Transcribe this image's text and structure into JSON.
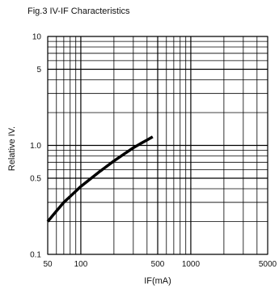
{
  "chart_data": {
    "type": "line",
    "title": "Fig.3 IV-IF Characteristics",
    "xlabel": "IF(mA)",
    "ylabel": "Relative IV.",
    "xscale": "log",
    "yscale": "log",
    "xlim": [
      50,
      5000
    ],
    "ylim": [
      0.1,
      10
    ],
    "x_tick_labels": [
      "50",
      "100",
      "500",
      "1000",
      "5000"
    ],
    "x_tick_values": [
      50,
      100,
      500,
      1000,
      5000
    ],
    "y_tick_labels": [
      "0.1",
      "0.5",
      "1.0",
      "5",
      "10"
    ],
    "y_tick_values": [
      0.1,
      0.5,
      1.0,
      5,
      10
    ],
    "grid": true,
    "x_minor_grid": [
      60,
      70,
      80,
      90,
      200,
      300,
      400,
      600,
      700,
      800,
      900,
      2000,
      3000,
      4000
    ],
    "y_minor_grid": [
      0.2,
      0.3,
      0.4,
      0.6,
      0.7,
      0.8,
      0.9,
      2,
      3,
      4,
      6,
      7,
      8,
      9
    ],
    "series": [
      {
        "x": [
          50,
          60,
          70,
          80,
          100,
          150,
          200,
          250,
          300,
          350,
          400,
          450
        ],
        "y": [
          0.2,
          0.25,
          0.3,
          0.34,
          0.42,
          0.58,
          0.72,
          0.84,
          0.95,
          1.04,
          1.12,
          1.2
        ]
      }
    ]
  }
}
